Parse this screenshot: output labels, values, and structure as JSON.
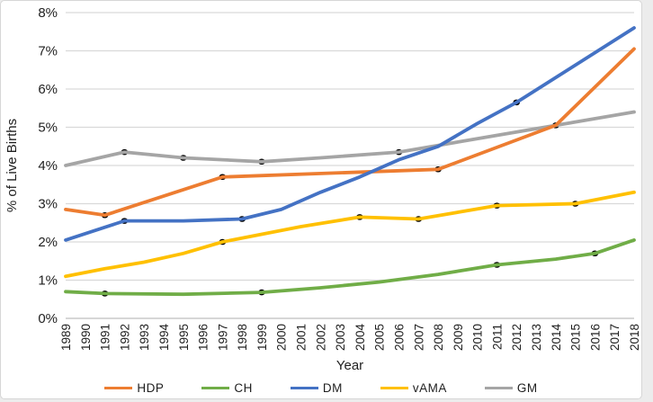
{
  "chart_data": {
    "type": "line",
    "title": "",
    "xlabel": "Year",
    "ylabel": "% of Live Births",
    "xlim": [
      1989,
      2018
    ],
    "ylim": [
      0,
      8
    ],
    "grid": "horizontal",
    "gridline_color": "#d9d9d9",
    "baseline_color": "#bfbfbf",
    "marker_color": "#000000",
    "legend_position": "bottom",
    "x_ticks": [
      1989,
      1990,
      1991,
      1992,
      1993,
      1994,
      1995,
      1996,
      1997,
      1998,
      1999,
      2000,
      2001,
      2002,
      2003,
      2004,
      2005,
      2006,
      2007,
      2008,
      2009,
      2010,
      2011,
      2012,
      2013,
      2014,
      2015,
      2016,
      2017,
      2018
    ],
    "x_tick_labels": [
      "1989",
      "1990",
      "1991",
      "1992",
      "1993",
      "1994",
      "1995",
      "1996",
      "1997",
      "1998",
      "1999",
      "2000",
      "2001",
      "2002",
      "2003",
      "2004",
      "2005",
      "2006",
      "2007",
      "2008",
      "2009",
      "2010",
      "2011",
      "2012",
      "2013",
      "2014",
      "2015",
      "2016",
      "2017",
      "2018"
    ],
    "y_ticks": [
      0,
      1,
      2,
      3,
      4,
      5,
      6,
      7,
      8
    ],
    "y_tick_labels": [
      "0%",
      "1%",
      "2%",
      "3%",
      "4%",
      "5%",
      "6%",
      "7%",
      "8%"
    ],
    "series": [
      {
        "name": "HDP",
        "color": "#ED7D31",
        "points": [
          [
            1989,
            2.85
          ],
          [
            1991,
            2.7
          ],
          [
            1997,
            3.7
          ],
          [
            2008,
            3.9
          ],
          [
            2014,
            5.05
          ],
          [
            2018,
            7.05
          ]
        ],
        "marker_years": [
          1991,
          1997,
          2008
        ]
      },
      {
        "name": "CH",
        "color": "#70AD47",
        "points": [
          [
            1989,
            0.7
          ],
          [
            1991,
            0.65
          ],
          [
            1995,
            0.63
          ],
          [
            1999,
            0.68
          ],
          [
            2002,
            0.8
          ],
          [
            2005,
            0.95
          ],
          [
            2008,
            1.15
          ],
          [
            2011,
            1.4
          ],
          [
            2014,
            1.55
          ],
          [
            2016,
            1.7
          ],
          [
            2018,
            2.05
          ]
        ],
        "marker_years": [
          1991,
          1999,
          2011,
          2016
        ]
      },
      {
        "name": "DM",
        "color": "#4472C4",
        "points": [
          [
            1989,
            2.05
          ],
          [
            1992,
            2.55
          ],
          [
            1995,
            2.55
          ],
          [
            1998,
            2.6
          ],
          [
            2000,
            2.85
          ],
          [
            2002,
            3.3
          ],
          [
            2004,
            3.7
          ],
          [
            2006,
            4.15
          ],
          [
            2008,
            4.5
          ],
          [
            2010,
            5.1
          ],
          [
            2012,
            5.65
          ],
          [
            2018,
            7.6
          ]
        ],
        "marker_years": [
          1992,
          1998,
          2012
        ]
      },
      {
        "name": "vAMA",
        "color": "#FFC000",
        "points": [
          [
            1989,
            1.1
          ],
          [
            1991,
            1.3
          ],
          [
            1993,
            1.47
          ],
          [
            1995,
            1.7
          ],
          [
            1997,
            2.0
          ],
          [
            1999,
            2.2
          ],
          [
            2001,
            2.4
          ],
          [
            2004,
            2.65
          ],
          [
            2007,
            2.6
          ],
          [
            2011,
            2.95
          ],
          [
            2015,
            3.0
          ],
          [
            2018,
            3.3
          ]
        ],
        "marker_years": [
          1997,
          2004,
          2007,
          2011,
          2015
        ]
      },
      {
        "name": "GM",
        "color": "#A5A5A5",
        "points": [
          [
            1989,
            4.0
          ],
          [
            1992,
            4.35
          ],
          [
            1995,
            4.2
          ],
          [
            1999,
            4.1
          ],
          [
            2002,
            4.2
          ],
          [
            2006,
            4.35
          ],
          [
            2014,
            5.05
          ],
          [
            2018,
            5.4
          ]
        ],
        "marker_years": [
          1992,
          1995,
          1999,
          2006,
          2014
        ]
      }
    ]
  }
}
